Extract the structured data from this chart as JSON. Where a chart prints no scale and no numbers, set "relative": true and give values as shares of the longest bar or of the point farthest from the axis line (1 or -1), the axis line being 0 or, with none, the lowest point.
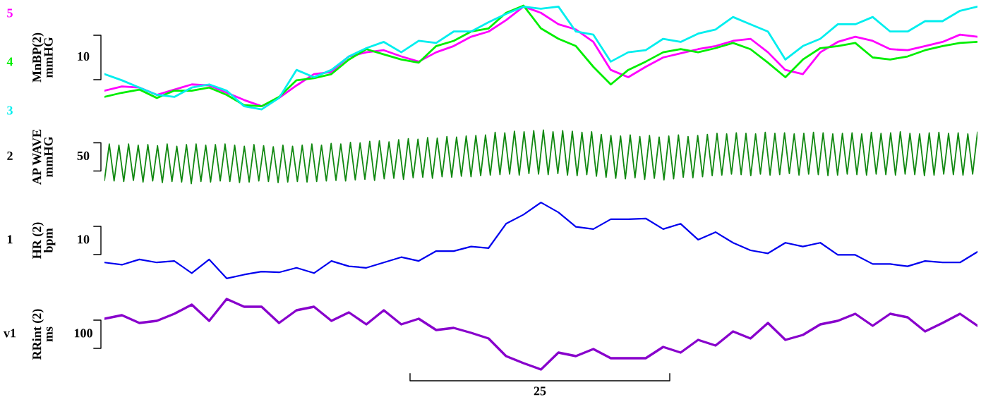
{
  "chart_data": [
    {
      "type": "line",
      "relative": true,
      "ylabel": "MnBP(2)\nmmHG",
      "annotations": [
        "10"
      ],
      "categories": [
        null,
        null,
        null,
        null,
        null,
        null,
        null,
        null,
        null,
        null,
        null,
        null,
        null,
        null,
        null,
        null,
        null,
        null,
        null,
        null,
        null,
        null,
        null,
        null,
        null,
        null,
        null,
        null,
        null,
        null,
        null,
        null,
        null,
        null,
        null,
        null,
        null,
        null,
        null,
        null,
        null,
        null,
        null,
        null,
        null,
        null,
        null,
        null,
        null,
        null,
        null
      ],
      "series": [
        {
          "name": "5",
          "color": "#ff00ff",
          "values": [
            0.18,
            0.22,
            0.21,
            0.14,
            0.19,
            0.24,
            0.23,
            0.16,
            0.09,
            0.03,
            0.11,
            0.23,
            0.34,
            0.36,
            0.51,
            0.55,
            0.57,
            0.51,
            0.46,
            0.55,
            0.61,
            0.7,
            0.75,
            0.86,
            0.99,
            0.93,
            0.82,
            0.77,
            0.65,
            0.38,
            0.31,
            0.41,
            0.5,
            0.54,
            0.58,
            0.61,
            0.66,
            0.68,
            0.55,
            0.38,
            0.34,
            0.55,
            0.65,
            0.7,
            0.66,
            0.58,
            0.57,
            0.61,
            0.65,
            0.72,
            0.7
          ]
        },
        {
          "name": "4",
          "color": "#00ee00",
          "values": [
            0.12,
            0.16,
            0.19,
            0.11,
            0.18,
            0.18,
            0.21,
            0.14,
            0.04,
            0.03,
            0.12,
            0.28,
            0.3,
            0.34,
            0.48,
            0.58,
            0.53,
            0.48,
            0.45,
            0.61,
            0.66,
            0.75,
            0.78,
            0.93,
            1.0,
            0.78,
            0.68,
            0.61,
            0.41,
            0.24,
            0.38,
            0.46,
            0.55,
            0.58,
            0.55,
            0.59,
            0.64,
            0.58,
            0.45,
            0.31,
            0.48,
            0.59,
            0.61,
            0.64,
            0.5,
            0.48,
            0.51,
            0.57,
            0.61,
            0.64,
            0.65
          ]
        },
        {
          "name": "3",
          "color": "#00eeee",
          "values": [
            0.34,
            0.28,
            0.21,
            0.14,
            0.12,
            0.21,
            0.24,
            0.18,
            0.03,
            0.0,
            0.11,
            0.38,
            0.31,
            0.38,
            0.51,
            0.59,
            0.65,
            0.55,
            0.66,
            0.64,
            0.75,
            0.75,
            0.84,
            0.92,
            0.99,
            0.97,
            0.99,
            0.75,
            0.72,
            0.46,
            0.55,
            0.57,
            0.68,
            0.65,
            0.73,
            0.77,
            0.89,
            0.82,
            0.75,
            0.48,
            0.61,
            0.68,
            0.82,
            0.82,
            0.89,
            0.75,
            0.75,
            0.85,
            0.85,
            0.95,
            0.99
          ]
        }
      ]
    },
    {
      "type": "line",
      "relative": true,
      "ylabel": "AP WAVE\nmmHG",
      "annotations": [
        "2",
        "50"
      ],
      "categories": [
        null,
        null,
        null,
        null,
        null,
        null,
        null,
        null,
        null,
        null,
        null,
        null,
        null,
        null,
        null,
        null,
        null,
        null,
        null,
        null,
        null,
        null,
        null,
        null,
        null,
        null,
        null,
        null,
        null,
        null,
        null,
        null,
        null,
        null,
        null,
        null,
        null,
        null,
        null,
        null,
        null,
        null,
        null,
        null,
        null,
        null,
        null,
        null,
        null,
        null,
        null,
        null,
        null,
        null,
        null,
        null,
        null,
        null,
        null,
        null,
        null,
        null,
        null,
        null,
        null,
        null,
        null,
        null,
        null,
        null,
        null,
        null,
        null,
        null,
        null,
        null,
        null,
        null,
        null,
        null,
        null,
        null,
        null,
        null,
        null,
        null,
        null,
        null,
        null,
        null,
        null,
        null,
        null,
        null,
        null,
        null,
        null,
        null,
        null,
        null,
        null,
        null,
        null,
        null,
        null,
        null,
        null,
        null,
        null,
        null,
        null,
        null,
        null,
        null,
        null,
        null,
        null,
        null,
        null,
        null,
        null,
        null,
        null,
        null,
        null,
        null,
        null,
        null,
        null,
        null,
        null,
        null,
        null,
        null,
        null,
        null,
        null,
        null,
        null,
        null,
        null,
        null,
        null,
        null,
        null,
        null,
        null,
        null,
        null,
        null,
        null,
        null,
        null,
        null,
        null,
        null,
        null,
        null,
        null,
        null,
        null,
        null,
        null,
        null,
        null,
        null,
        null,
        null,
        null,
        null,
        null,
        null,
        null,
        null,
        null,
        null,
        null,
        null,
        null,
        null,
        null,
        null
      ],
      "series": [
        {
          "color": "#118811",
          "values": [
            0.06,
            0.74,
            0.05,
            0.72,
            0.04,
            0.74,
            0.06,
            0.72,
            0.03,
            0.73,
            0.05,
            0.71,
            0.02,
            0.74,
            0.04,
            0.7,
            0.03,
            0.73,
            0.0,
            0.74,
            0.04,
            0.72,
            0.03,
            0.73,
            0.05,
            0.74,
            0.04,
            0.72,
            0.02,
            0.7,
            0.03,
            0.73,
            0.05,
            0.71,
            0.04,
            0.69,
            0.02,
            0.72,
            0.03,
            0.7,
            0.04,
            0.72,
            0.03,
            0.74,
            0.04,
            0.72,
            0.05,
            0.75,
            0.06,
            0.74,
            0.05,
            0.77,
            0.07,
            0.76,
            0.08,
            0.79,
            0.06,
            0.8,
            0.09,
            0.78,
            0.1,
            0.82,
            0.08,
            0.84,
            0.11,
            0.83,
            0.12,
            0.86,
            0.1,
            0.85,
            0.13,
            0.88,
            0.12,
            0.87,
            0.14,
            0.89,
            0.13,
            0.9,
            0.15,
            0.91,
            0.16,
            0.96,
            0.17,
            0.95,
            0.18,
            0.98,
            0.16,
            0.97,
            0.19,
            0.99,
            0.18,
            1.0,
            0.17,
            0.97,
            0.19,
            0.99,
            0.16,
            0.98,
            0.15,
            0.96,
            0.17,
            0.97,
            0.14,
            0.92,
            0.12,
            0.9,
            0.1,
            0.89,
            0.09,
            0.91,
            0.11,
            0.88,
            0.08,
            0.9,
            0.1,
            0.87,
            0.07,
            0.89,
            0.09,
            0.91,
            0.12,
            0.88,
            0.11,
            0.9,
            0.13,
            0.92,
            0.15,
            0.94,
            0.16,
            0.93,
            0.18,
            0.95,
            0.17,
            0.94,
            0.15,
            0.93,
            0.18,
            0.96,
            0.16,
            0.94,
            0.17,
            0.95,
            0.19,
            0.93,
            0.16,
            0.94,
            0.18,
            0.96,
            0.17,
            0.95,
            0.15,
            0.93,
            0.16,
            0.94,
            0.18,
            0.95,
            0.17,
            0.93,
            0.16,
            0.96,
            0.18,
            0.94,
            0.17,
            0.95,
            0.16,
            0.97,
            0.18,
            0.94,
            0.17,
            0.93,
            0.15,
            0.95,
            0.16,
            0.96,
            0.18,
            0.94,
            0.17,
            0.95,
            0.16,
            0.93,
            0.18,
            0.96
          ]
        }
      ]
    },
    {
      "type": "line",
      "relative": true,
      "ylabel": "HR (2)\nbpm",
      "annotations": [
        "1",
        "10"
      ],
      "categories": [
        null,
        null,
        null,
        null,
        null,
        null,
        null,
        null,
        null,
        null,
        null,
        null,
        null,
        null,
        null,
        null,
        null,
        null,
        null,
        null,
        null,
        null,
        null,
        null,
        null,
        null,
        null,
        null,
        null,
        null,
        null,
        null,
        null,
        null,
        null,
        null,
        null,
        null,
        null,
        null,
        null,
        null,
        null,
        null,
        null,
        null,
        null,
        null,
        null,
        null,
        null
      ],
      "series": [
        {
          "color": "#0000ee",
          "values": [
            0.21,
            0.18,
            0.25,
            0.21,
            0.23,
            0.07,
            0.25,
            0.0,
            0.05,
            0.09,
            0.08,
            0.14,
            0.07,
            0.23,
            0.16,
            0.14,
            0.21,
            0.28,
            0.23,
            0.36,
            0.36,
            0.42,
            0.4,
            0.72,
            0.84,
            1.0,
            0.87,
            0.68,
            0.65,
            0.78,
            0.78,
            0.79,
            0.65,
            0.72,
            0.51,
            0.61,
            0.47,
            0.37,
            0.33,
            0.47,
            0.42,
            0.47,
            0.31,
            0.31,
            0.19,
            0.19,
            0.16,
            0.23,
            0.21,
            0.21,
            0.35
          ]
        }
      ]
    },
    {
      "type": "line",
      "relative": true,
      "ylabel": "RRint (2)\nms",
      "annotations": [
        "v1",
        "100",
        "25"
      ],
      "categories": [
        null,
        null,
        null,
        null,
        null,
        null,
        null,
        null,
        null,
        null,
        null,
        null,
        null,
        null,
        null,
        null,
        null,
        null,
        null,
        null,
        null,
        null,
        null,
        null,
        null,
        null,
        null,
        null,
        null,
        null,
        null,
        null,
        null,
        null,
        null,
        null,
        null,
        null,
        null,
        null,
        null,
        null,
        null,
        null,
        null,
        null,
        null,
        null,
        null,
        null,
        null
      ],
      "series": [
        {
          "color": "#8800cc",
          "values": [
            0.72,
            0.77,
            0.66,
            0.69,
            0.79,
            0.92,
            0.69,
            1.0,
            0.89,
            0.89,
            0.66,
            0.84,
            0.89,
            0.69,
            0.81,
            0.64,
            0.84,
            0.64,
            0.72,
            0.56,
            0.59,
            0.52,
            0.44,
            0.19,
            0.09,
            0.0,
            0.24,
            0.19,
            0.29,
            0.16,
            0.16,
            0.16,
            0.32,
            0.24,
            0.42,
            0.34,
            0.54,
            0.44,
            0.66,
            0.42,
            0.49,
            0.64,
            0.69,
            0.79,
            0.62,
            0.79,
            0.74,
            0.54,
            0.66,
            0.79,
            0.62
          ]
        }
      ]
    }
  ]
}
